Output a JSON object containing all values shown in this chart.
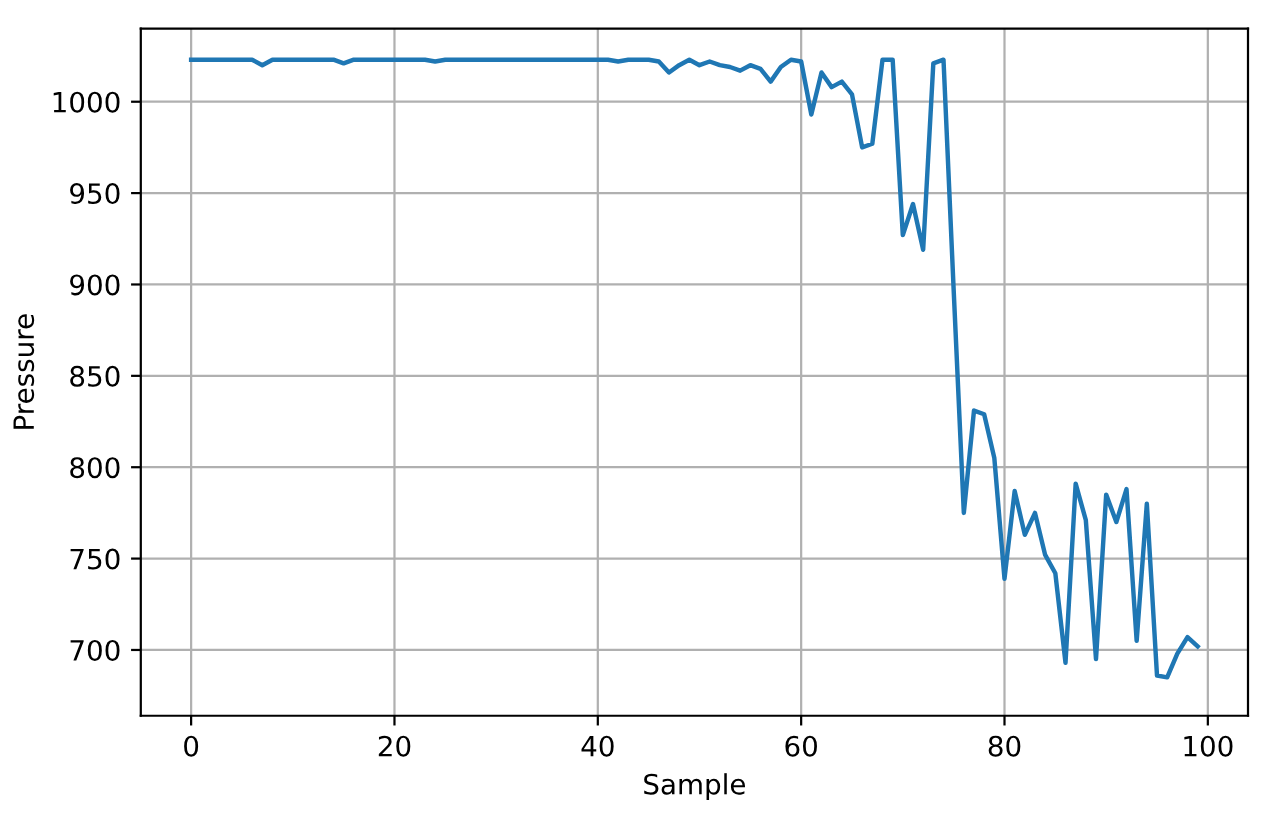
{
  "chart_data": {
    "type": "line",
    "xlabel": "Sample",
    "ylabel": "Pressure",
    "x": [
      0,
      1,
      2,
      3,
      4,
      5,
      6,
      7,
      8,
      9,
      10,
      11,
      12,
      13,
      14,
      15,
      16,
      17,
      18,
      19,
      20,
      21,
      22,
      23,
      24,
      25,
      26,
      27,
      28,
      29,
      30,
      31,
      32,
      33,
      34,
      35,
      36,
      37,
      38,
      39,
      40,
      41,
      42,
      43,
      44,
      45,
      46,
      47,
      48,
      49,
      50,
      51,
      52,
      53,
      54,
      55,
      56,
      57,
      58,
      59,
      60,
      61,
      62,
      63,
      64,
      65,
      66,
      67,
      68,
      69,
      70,
      71,
      72,
      73,
      74,
      75,
      76,
      77,
      78,
      79,
      80,
      81,
      82,
      83,
      84,
      85,
      86,
      87,
      88,
      89,
      90,
      91,
      92,
      93,
      94,
      95,
      96,
      97,
      98,
      99
    ],
    "series": [
      {
        "color": "#1f77b4",
        "values": [
          1023,
          1023,
          1023,
          1023,
          1023,
          1023,
          1023,
          1020,
          1023,
          1023,
          1023,
          1023,
          1023,
          1023,
          1023,
          1021,
          1023,
          1023,
          1023,
          1023,
          1023,
          1023,
          1023,
          1023,
          1022,
          1023,
          1023,
          1023,
          1023,
          1023,
          1023,
          1023,
          1023,
          1023,
          1023,
          1023,
          1023,
          1023,
          1023,
          1023,
          1023,
          1023,
          1022,
          1023,
          1023,
          1023,
          1022,
          1016,
          1020,
          1023,
          1020,
          1022,
          1020,
          1019,
          1017,
          1020,
          1018,
          1011,
          1019,
          1023,
          1022,
          993,
          1016,
          1008,
          1011,
          1004,
          975,
          977,
          1023,
          1023,
          927,
          944,
          919,
          1021,
          1023,
          897,
          775,
          831,
          829,
          805,
          739,
          787,
          763,
          775,
          752,
          742,
          693,
          791,
          771,
          695,
          785,
          770,
          788,
          705,
          780,
          686,
          685,
          698,
          707,
          702
        ]
      }
    ],
    "xlim": [
      -4.95,
      103.95
    ],
    "ylim": [
      664,
      1040
    ],
    "xticks": [
      0,
      20,
      40,
      60,
      80,
      100
    ],
    "yticks": [
      700,
      750,
      800,
      850,
      900,
      950,
      1000
    ],
    "grid": true,
    "line_style": "solid",
    "marker": "none"
  }
}
